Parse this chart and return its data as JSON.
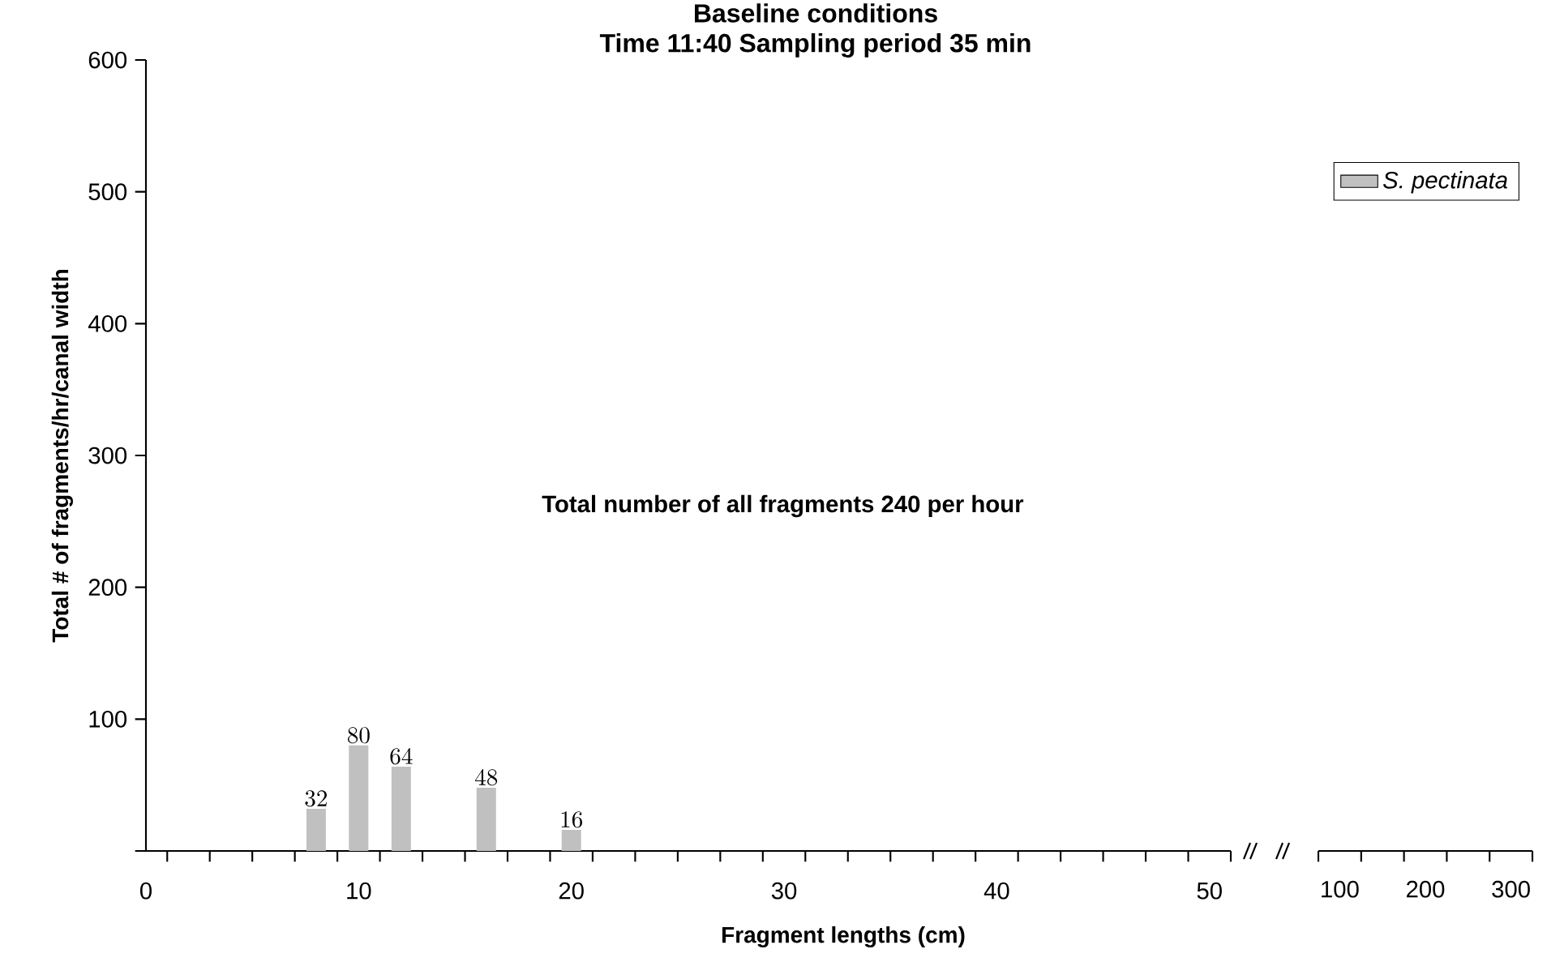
{
  "chart_data": [
    {
      "type": "bar",
      "title": "Baseline conditions",
      "subtitle": "Time 11:40   Sampling period 35 min",
      "xlabel": "Fragment lengths (cm)",
      "ylabel": "Total # of fragments/hr/canal width",
      "x": [
        8,
        10,
        12,
        16,
        20
      ],
      "series": [
        {
          "name": "S. pectinata",
          "color": "#c0c0c0",
          "values": [
            32,
            80,
            64,
            48,
            16
          ]
        }
      ],
      "data_labels": true,
      "legend": "top right",
      "annotations": [
        "Total number of all fragments 240 per hour"
      ],
      "xlim": [
        0,
        51
      ],
      "xticks": [
        0,
        10,
        20,
        30,
        40,
        50
      ],
      "ylim": [
        0,
        600
      ],
      "yticks": [
        {
          "value": 0,
          "label": null
        },
        100,
        200,
        300,
        400,
        500,
        600
      ]
    },
    {
      "type": "bar",
      "xlim": [
        75,
        325
      ],
      "xticks": [
        100,
        200,
        300
      ],
      "ylim": [
        0,
        600
      ],
      "tick_labels": "x"
    }
  ]
}
